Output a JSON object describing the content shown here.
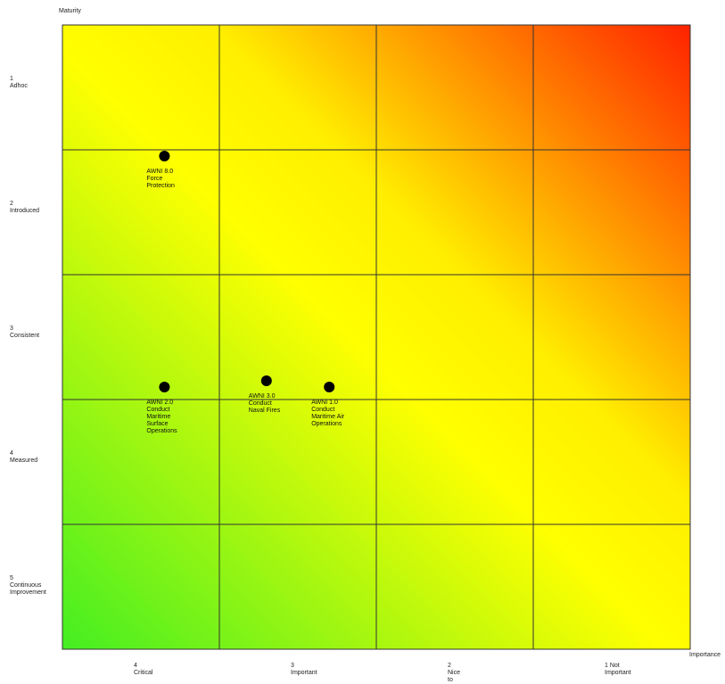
{
  "chart_data": {
    "type": "scatter",
    "ylabel": "Maturity",
    "xlabel": "Importance",
    "x_ticks": [
      [
        "4",
        "Critical"
      ],
      [
        "3",
        "Important"
      ],
      [
        "2",
        "Nice",
        "to"
      ],
      [
        "1 Not",
        "Important"
      ]
    ],
    "y_ticks": [
      [
        "1",
        "Adhoc"
      ],
      [
        "2",
        "Introduced"
      ],
      [
        "3",
        "Consistent"
      ],
      [
        "4",
        "Measured"
      ],
      [
        "5",
        "Continuous",
        "Improvement"
      ]
    ],
    "points": [
      {
        "x": 3.85,
        "y": 1.55,
        "label": [
          "AWNI 8.0",
          "Force",
          "Protection"
        ]
      },
      {
        "x": 3.85,
        "y": 3.4,
        "label": [
          "AWNI 2.0",
          "Conduct",
          "Maritime",
          "Surface",
          "Operations"
        ]
      },
      {
        "x": 3.2,
        "y": 3.35,
        "label": [
          "AWNI 3.0",
          "Conduct",
          "Naval Fires"
        ]
      },
      {
        "x": 2.8,
        "y": 3.4,
        "label": [
          "AWNI 1.0",
          "Conduct",
          "Maritime Air",
          "Operations"
        ]
      }
    ],
    "xlim": [
      4.5,
      0.5
    ],
    "ylim": [
      0.5,
      5.5
    ],
    "background": "gradient from green (bottom-left) through yellow to red (top-right)",
    "grid": true,
    "colors": {
      "low": "#44ee22",
      "mid": "#ffff00",
      "high": "#ff2200",
      "point": "#000000"
    }
  }
}
